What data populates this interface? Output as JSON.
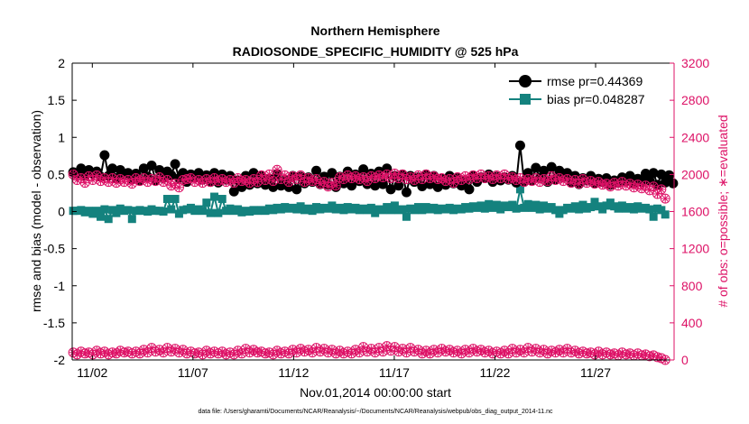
{
  "chart_data": {
    "type": "line",
    "title": "Northern Hemisphere",
    "subtitle": "RADIOSONDE_SPECIFIC_HUMIDITY @ 525 hPa",
    "xlabel": "Nov.01,2014 00:00:00 start",
    "ylabel_left": "rmse and bias (model - observation)",
    "ylabel_right": "# of obs: o=possible; ∗=evaluated",
    "footnote": "data file: /Users/gharamti/Documents/NCAR/Reanalysis/~/Documents/NCAR/Reanalysis/webpub/obs_diag_output_2014-11.nc",
    "x_ticks": [
      "11/02",
      "11/07",
      "11/12",
      "11/17",
      "11/22",
      "11/27"
    ],
    "x_tick_days": [
      2,
      7,
      12,
      17,
      22,
      27
    ],
    "xlim_days": [
      1.0,
      30.9
    ],
    "ylim_left": [
      -2,
      2
    ],
    "yticks_left": [
      "2",
      "1.5",
      "1",
      "0.5",
      "0",
      "-0.5",
      "-1",
      "-1.5",
      "-2"
    ],
    "ylim_right": [
      0,
      3200
    ],
    "yticks_right": [
      "3200",
      "2800",
      "2400",
      "2000",
      "1600",
      "1200",
      "800",
      "400",
      "0"
    ],
    "colors": {
      "rmse": "#000000",
      "bias": "#14827e",
      "obs": "#dd1166",
      "axis": "#000000",
      "right_axis": "#dd1166"
    },
    "legend": [
      {
        "name": "rmse pr=0.44369"
      },
      {
        "name": "bias pr=0.048287"
      }
    ],
    "series": [
      {
        "name": "rmse",
        "values": [
          0.53,
          0.5,
          0.58,
          0.49,
          0.56,
          0.51,
          0.54,
          0.47,
          0.76,
          0.48,
          0.58,
          0.45,
          0.56,
          0.5,
          0.52,
          0.44,
          0.51,
          0.42,
          0.58,
          0.47,
          0.62,
          0.42,
          0.56,
          0.45,
          0.54,
          0.49,
          0.64,
          0.45,
          0.52,
          0.4,
          0.5,
          0.46,
          0.52,
          0.43,
          0.49,
          0.4,
          0.52,
          0.39,
          0.5,
          0.43,
          0.48,
          0.27,
          0.42,
          0.33,
          0.48,
          0.36,
          0.52,
          0.38,
          0.48,
          0.36,
          0.44,
          0.33,
          0.5,
          0.35,
          0.42,
          0.33,
          0.48,
          0.3,
          0.47,
          0.38,
          0.46,
          0.4,
          0.55,
          0.37,
          0.47,
          0.36,
          0.52,
          0.33,
          0.47,
          0.38,
          0.54,
          0.35,
          0.5,
          0.41,
          0.57,
          0.37,
          0.51,
          0.35,
          0.54,
          0.37,
          0.58,
          0.3,
          0.48,
          0.35,
          0.5,
          0.26,
          0.48,
          0.4,
          0.46,
          0.34,
          0.5,
          0.37,
          0.48,
          0.33,
          0.44,
          0.36,
          0.48,
          0.38,
          0.45,
          0.35,
          0.42,
          0.3,
          0.48,
          0.4,
          0.46,
          0.45,
          0.5,
          0.4,
          0.47,
          0.42,
          0.46,
          0.43,
          0.48,
          0.39,
          0.89,
          0.4,
          0.52,
          0.42,
          0.59,
          0.45,
          0.55,
          0.4,
          0.6,
          0.43,
          0.55,
          0.46,
          0.52,
          0.4,
          0.48,
          0.37,
          0.45,
          0.42,
          0.48,
          0.38,
          0.44,
          0.4,
          0.45,
          0.36,
          0.42,
          0.39,
          0.46,
          0.41,
          0.48,
          0.38,
          0.44,
          0.4,
          0.51,
          0.42,
          0.52,
          0.36,
          0.5,
          0.39,
          0.49,
          0.38
        ]
      },
      {
        "name": "bias",
        "values": [
          0.01,
          0.01,
          0.02,
          -0.01,
          0.01,
          -0.03,
          0.01,
          -0.07,
          0.03,
          -0.1,
          0.02,
          -0.02,
          0.04,
          0.01,
          0.02,
          -0.1,
          0.01,
          0.02,
          0.01,
          0.0,
          0.03,
          0.01,
          0.01,
          0.0,
          0.17,
          0.03,
          0.17,
          -0.03,
          0.02,
          0.03,
          0.05,
          0.01,
          0.03,
          0.01,
          0.12,
          -0.02,
          0.2,
          -0.02,
          0.17,
          0.01,
          0.04,
          0.01,
          0.03,
          -0.01,
          0.01,
          0.0,
          0.02,
          0.01,
          0.02,
          0.01,
          0.04,
          0.02,
          0.05,
          0.03,
          0.06,
          0.04,
          0.05,
          0.03,
          0.07,
          0.02,
          0.04,
          0.01,
          0.06,
          0.03,
          0.05,
          0.04,
          0.08,
          0.03,
          0.05,
          0.02,
          0.06,
          0.03,
          0.05,
          0.02,
          0.04,
          0.02,
          0.05,
          -0.02,
          0.03,
          0.02,
          0.06,
          0.02,
          0.08,
          0.02,
          0.03,
          -0.07,
          0.04,
          0.02,
          0.06,
          0.02,
          0.06,
          0.03,
          0.05,
          0.02,
          0.04,
          0.03,
          0.05,
          0.02,
          0.04,
          0.03,
          0.06,
          0.04,
          0.07,
          0.05,
          0.08,
          0.04,
          0.1,
          0.05,
          0.09,
          0.03,
          0.08,
          0.06,
          0.09,
          0.04,
          0.3,
          0.05,
          0.1,
          0.05,
          0.09,
          0.03,
          0.08,
          0.04,
          0.06,
          0.02,
          -0.03,
          0.02,
          0.05,
          0.04,
          0.07,
          0.03,
          0.09,
          0.04,
          0.06,
          0.13,
          0.07,
          0.03,
          0.08,
          0.12,
          0.07,
          0.04,
          0.08,
          0.04,
          0.06,
          0.03,
          0.07,
          0.04,
          0.05,
          0.03,
          -0.07,
          0.04,
          0.02,
          -0.04
        ]
      },
      {
        "name": "possible",
        "values": [
          2000,
          1940,
          1960,
          1910,
          1980,
          1940,
          1990,
          1930,
          1960,
          1920,
          1960,
          1910,
          1950,
          1920,
          1940,
          1900,
          1960,
          1930,
          1960,
          1920,
          1950,
          1930,
          1970,
          1920,
          1940,
          1880,
          1900,
          1860,
          1940,
          1950,
          1960,
          1920,
          1940,
          1910,
          1950,
          1920,
          1960,
          1930,
          1950,
          1920,
          1940,
          1910,
          1960,
          1930,
          1940,
          1910,
          1950,
          1920,
          1990,
          1940,
          2000,
          1930,
          2050,
          1950,
          1990,
          1920,
          1980,
          1950,
          1990,
          1920,
          1960,
          1930,
          1950,
          1900,
          1920,
          1870,
          1910,
          1880,
          1970,
          1950,
          1990,
          1960,
          1980,
          1950,
          1970,
          1930,
          1980,
          1960,
          1990,
          1970,
          2000,
          1960,
          2010,
          1960,
          2000,
          1950,
          1970,
          1940,
          1990,
          1950,
          2000,
          1960,
          1980,
          1950,
          1960,
          1930,
          1950,
          1910,
          1970,
          1940,
          1980,
          1950,
          1990,
          1960,
          2000,
          1960,
          1980,
          1950,
          1990,
          1960,
          2000,
          1950,
          1970,
          1940,
          1960,
          1920,
          1950,
          1930,
          1960,
          1920,
          1950,
          1930,
          1980,
          1940,
          1960,
          1930,
          1950,
          1910,
          1940,
          1900,
          1950,
          1910,
          1930,
          1900,
          1920,
          1890,
          1900,
          1870,
          1910,
          1880,
          1920,
          1880,
          1900,
          1860,
          1890,
          1850,
          1880,
          1830,
          1870,
          1790,
          1840,
          1740
        ]
      },
      {
        "name": "evaluated",
        "values": [
          80,
          60,
          90,
          70,
          80,
          60,
          100,
          70,
          90,
          60,
          80,
          70,
          100,
          80,
          90,
          70,
          90,
          70,
          110,
          80,
          130,
          90,
          110,
          80,
          130,
          90,
          120,
          80,
          110,
          70,
          90,
          70,
          80,
          60,
          100,
          70,
          90,
          70,
          90,
          60,
          80,
          60,
          100,
          70,
          120,
          80,
          110,
          80,
          90,
          70,
          80,
          60,
          100,
          70,
          90,
          70,
          110,
          80,
          120,
          90,
          110,
          80,
          130,
          90,
          120,
          80,
          110,
          70,
          100,
          70,
          90,
          70,
          110,
          80,
          140,
          90,
          120,
          80,
          130,
          90,
          150,
          100,
          140,
          90,
          120,
          80,
          130,
          90,
          110,
          70,
          100,
          70,
          110,
          80,
          120,
          90,
          110,
          80,
          100,
          70,
          110,
          80,
          120,
          90,
          110,
          80,
          100,
          70,
          90,
          70,
          100,
          70,
          120,
          80,
          110,
          80,
          130,
          90,
          120,
          80,
          110,
          70,
          100,
          80,
          110,
          80,
          120,
          80,
          100,
          70,
          90,
          70,
          80,
          60,
          90,
          60,
          80,
          60,
          70,
          50,
          80,
          60,
          70,
          50,
          70,
          50,
          60,
          40,
          50,
          30,
          20,
          0
        ]
      }
    ]
  }
}
